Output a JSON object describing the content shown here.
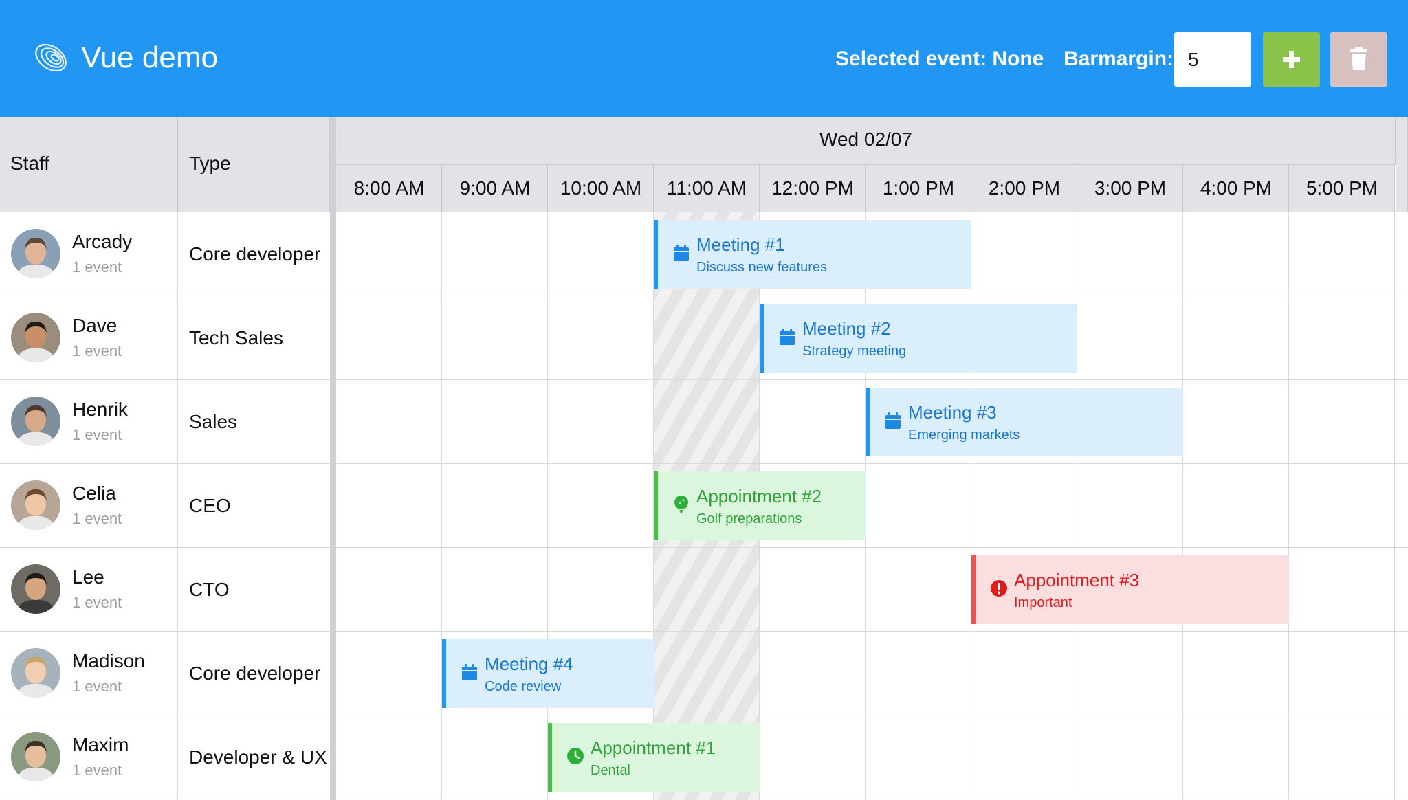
{
  "header": {
    "title": "Vue demo",
    "selected_event": "Selected event: None",
    "barmargin_label": "Barmargin:",
    "barmargin_value": "5",
    "add_icon": "plus-icon",
    "delete_icon": "trash-icon",
    "colors": {
      "background": "#2196f3",
      "add": "#8bc34a",
      "delete": "#d7c0c0"
    }
  },
  "columns": {
    "staff": "Staff",
    "type": "Type"
  },
  "timeline": {
    "date": "Wed 02/07",
    "hours": [
      "8:00 AM",
      "9:00 AM",
      "10:00 AM",
      "11:00 AM",
      "12:00 PM",
      "1:00 PM",
      "2:00 PM",
      "3:00 PM",
      "4:00 PM",
      "5:00 PM"
    ],
    "non_working_period": {
      "start": "11:00 AM",
      "end": "12:00 PM"
    }
  },
  "staff": [
    {
      "name": "Arcady",
      "events": "1 event",
      "type": "Core developer"
    },
    {
      "name": "Dave",
      "events": "1 event",
      "type": "Tech Sales"
    },
    {
      "name": "Henrik",
      "events": "1 event",
      "type": "Sales"
    },
    {
      "name": "Celia",
      "events": "1 event",
      "type": "CEO"
    },
    {
      "name": "Lee",
      "events": "1 event",
      "type": "CTO"
    },
    {
      "name": "Madison",
      "events": "1 event",
      "type": "Core developer"
    },
    {
      "name": "Maxim",
      "events": "1 event",
      "type": "Developer & UX"
    }
  ],
  "events": [
    {
      "title": "Meeting #1",
      "desc": "Discuss new features",
      "start": "11:00 AM",
      "end": "2:00 PM",
      "icon": "calendar-icon",
      "color": "blue"
    },
    {
      "title": "Meeting #2",
      "desc": "Strategy meeting",
      "start": "12:00 PM",
      "end": "3:00 PM",
      "icon": "calendar-icon",
      "color": "blue"
    },
    {
      "title": "Meeting #3",
      "desc": "Emerging markets",
      "start": "1:00 PM",
      "end": "4:00 PM",
      "icon": "calendar-icon",
      "color": "blue"
    },
    {
      "title": "Appointment #2",
      "desc": "Golf preparations",
      "start": "11:00 AM",
      "end": "1:00 PM",
      "icon": "golf-ball-icon",
      "color": "green"
    },
    {
      "title": "Appointment #3",
      "desc": "Important",
      "start": "2:00 PM",
      "end": "5:00 PM",
      "icon": "exclamation-circle-icon",
      "color": "red"
    },
    {
      "title": "Meeting #4",
      "desc": "Code review",
      "start": "9:00 AM",
      "end": "11:00 AM",
      "icon": "calendar-icon",
      "color": "blue"
    },
    {
      "title": "Appointment #1",
      "desc": "Dental",
      "start": "10:00 AM",
      "end": "12:00 PM",
      "icon": "clock-icon",
      "color": "green"
    }
  ]
}
